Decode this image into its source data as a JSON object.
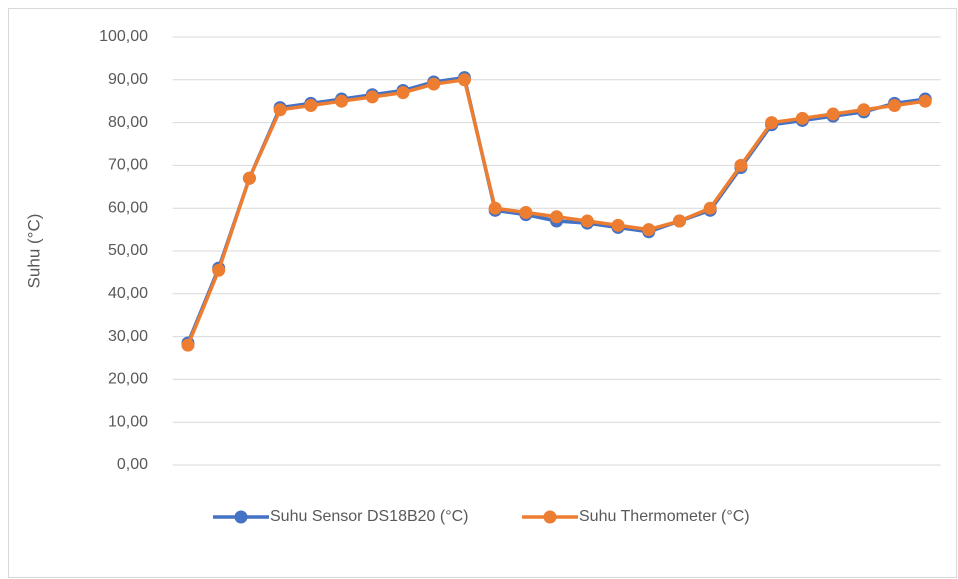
{
  "chart_data": {
    "type": "line",
    "y_label": "Suhu (°C)",
    "categories": [
      null,
      null,
      null,
      null,
      null,
      null,
      null,
      null,
      null,
      null,
      null,
      null,
      null,
      null,
      null,
      null,
      null,
      null,
      null,
      null,
      null,
      null,
      null,
      null,
      null
    ],
    "series": [
      {
        "name": "Suhu Sensor DS18B20 (°C)",
        "color": "#4472c4",
        "values": [
          28.5,
          46,
          67,
          83.5,
          84.5,
          85.5,
          86.5,
          87.5,
          89.5,
          90.5,
          59.5,
          58.5,
          57,
          56.5,
          55.5,
          54.5,
          57,
          59.5,
          69.5,
          79.5,
          80.5,
          81.5,
          82.5,
          84.5,
          85.5
        ]
      },
      {
        "name": "Suhu Thermometer (°C)",
        "color": "#ed7d31",
        "values": [
          28,
          45.5,
          67,
          83,
          84,
          85,
          86,
          87,
          89,
          90,
          60,
          59,
          58,
          57,
          56,
          55,
          57,
          60,
          70,
          80,
          81,
          82,
          83,
          84,
          85
        ]
      }
    ],
    "ylim": [
      0,
      100
    ],
    "yticks": [
      {
        "value": 0,
        "label": "0,00"
      },
      {
        "value": 10,
        "label": "10,00"
      },
      {
        "value": 20,
        "label": "20,00"
      },
      {
        "value": 30,
        "label": "30,00"
      },
      {
        "value": 40,
        "label": "40,00"
      },
      {
        "value": 50,
        "label": "50,00"
      },
      {
        "value": 60,
        "label": "60,00"
      },
      {
        "value": 70,
        "label": "70,00"
      },
      {
        "value": 80,
        "label": "80,00"
      },
      {
        "value": 90,
        "label": "90,00"
      },
      {
        "value": 100,
        "label": "100,00"
      }
    ],
    "grid": true,
    "legend": "bottom"
  }
}
